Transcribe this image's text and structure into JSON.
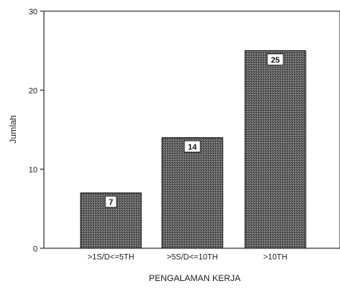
{
  "chart_data": {
    "type": "bar",
    "categories": [
      ">1S/D<=5TH",
      ">5S/D<=10TH",
      ">10TH"
    ],
    "values": [
      7,
      14,
      25
    ],
    "data_labels": [
      "7",
      "14",
      "25"
    ],
    "xlabel": "PENGALAMAN KERJA",
    "ylabel": "Jumlah",
    "ylim": [
      0,
      30
    ],
    "yticks": [
      0,
      10,
      20,
      30
    ],
    "ytick_labels": [
      "0",
      "10",
      "20",
      "30"
    ],
    "grid": false,
    "bar_color": "#555555"
  }
}
